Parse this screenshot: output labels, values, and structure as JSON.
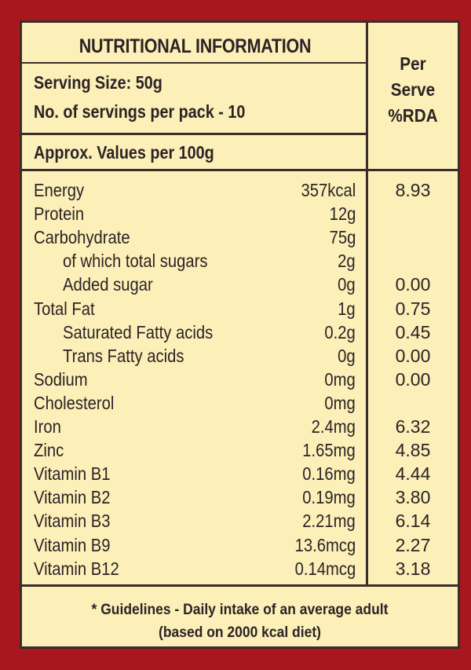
{
  "panel": {
    "title": "NUTRITIONAL INFORMATION",
    "serving_size": "Serving Size: 50g",
    "servings_per_pack": "No. of servings per pack - 10",
    "approx_values": "Approx. Values per 100g",
    "rda_header": [
      "Per",
      "Serve",
      "%RDA"
    ]
  },
  "nutrients": [
    {
      "name": "Energy",
      "value": "357kcal",
      "rda": "8.93",
      "indent": false
    },
    {
      "name": "Protein",
      "value": "12g",
      "rda": "",
      "indent": false
    },
    {
      "name": "Carbohydrate",
      "value": "75g",
      "rda": "",
      "indent": false
    },
    {
      "name": "of which total sugars",
      "value": "2g",
      "rda": "",
      "indent": true
    },
    {
      "name": "Added sugar",
      "value": "0g",
      "rda": "0.00",
      "indent": true
    },
    {
      "name": "Total Fat",
      "value": "1g",
      "rda": "0.75",
      "indent": false
    },
    {
      "name": "Saturated Fatty acids",
      "value": "0.2g",
      "rda": "0.45",
      "indent": true
    },
    {
      "name": "Trans Fatty acids",
      "value": "0g",
      "rda": "0.00",
      "indent": true
    },
    {
      "name": "Sodium",
      "value": "0mg",
      "rda": "0.00",
      "indent": false
    },
    {
      "name": "Cholesterol",
      "value": "0mg",
      "rda": "",
      "indent": false
    },
    {
      "name": "Iron",
      "value": "2.4mg",
      "rda": "6.32",
      "indent": false
    },
    {
      "name": "Zinc",
      "value": "1.65mg",
      "rda": "4.85",
      "indent": false
    },
    {
      "name": "Vitamin B1",
      "value": "0.16mg",
      "rda": "4.44",
      "indent": false
    },
    {
      "name": "Vitamin B2",
      "value": "0.19mg",
      "rda": "3.80",
      "indent": false
    },
    {
      "name": "Vitamin B3",
      "value": "2.21mg",
      "rda": "6.14",
      "indent": false
    },
    {
      "name": "Vitamin B9",
      "value": "13.6mcg",
      "rda": "2.27",
      "indent": false
    },
    {
      "name": "Vitamin B12",
      "value": "0.14mcg",
      "rda": "3.18",
      "indent": false
    }
  ],
  "footer": {
    "line1": "* Guidelines - Daily intake of an average adult",
    "line2": "(based on 2000 kcal diet)"
  },
  "colors": {
    "background": "#a8161e",
    "panel": "#fcefb8",
    "text": "#2b2326"
  }
}
